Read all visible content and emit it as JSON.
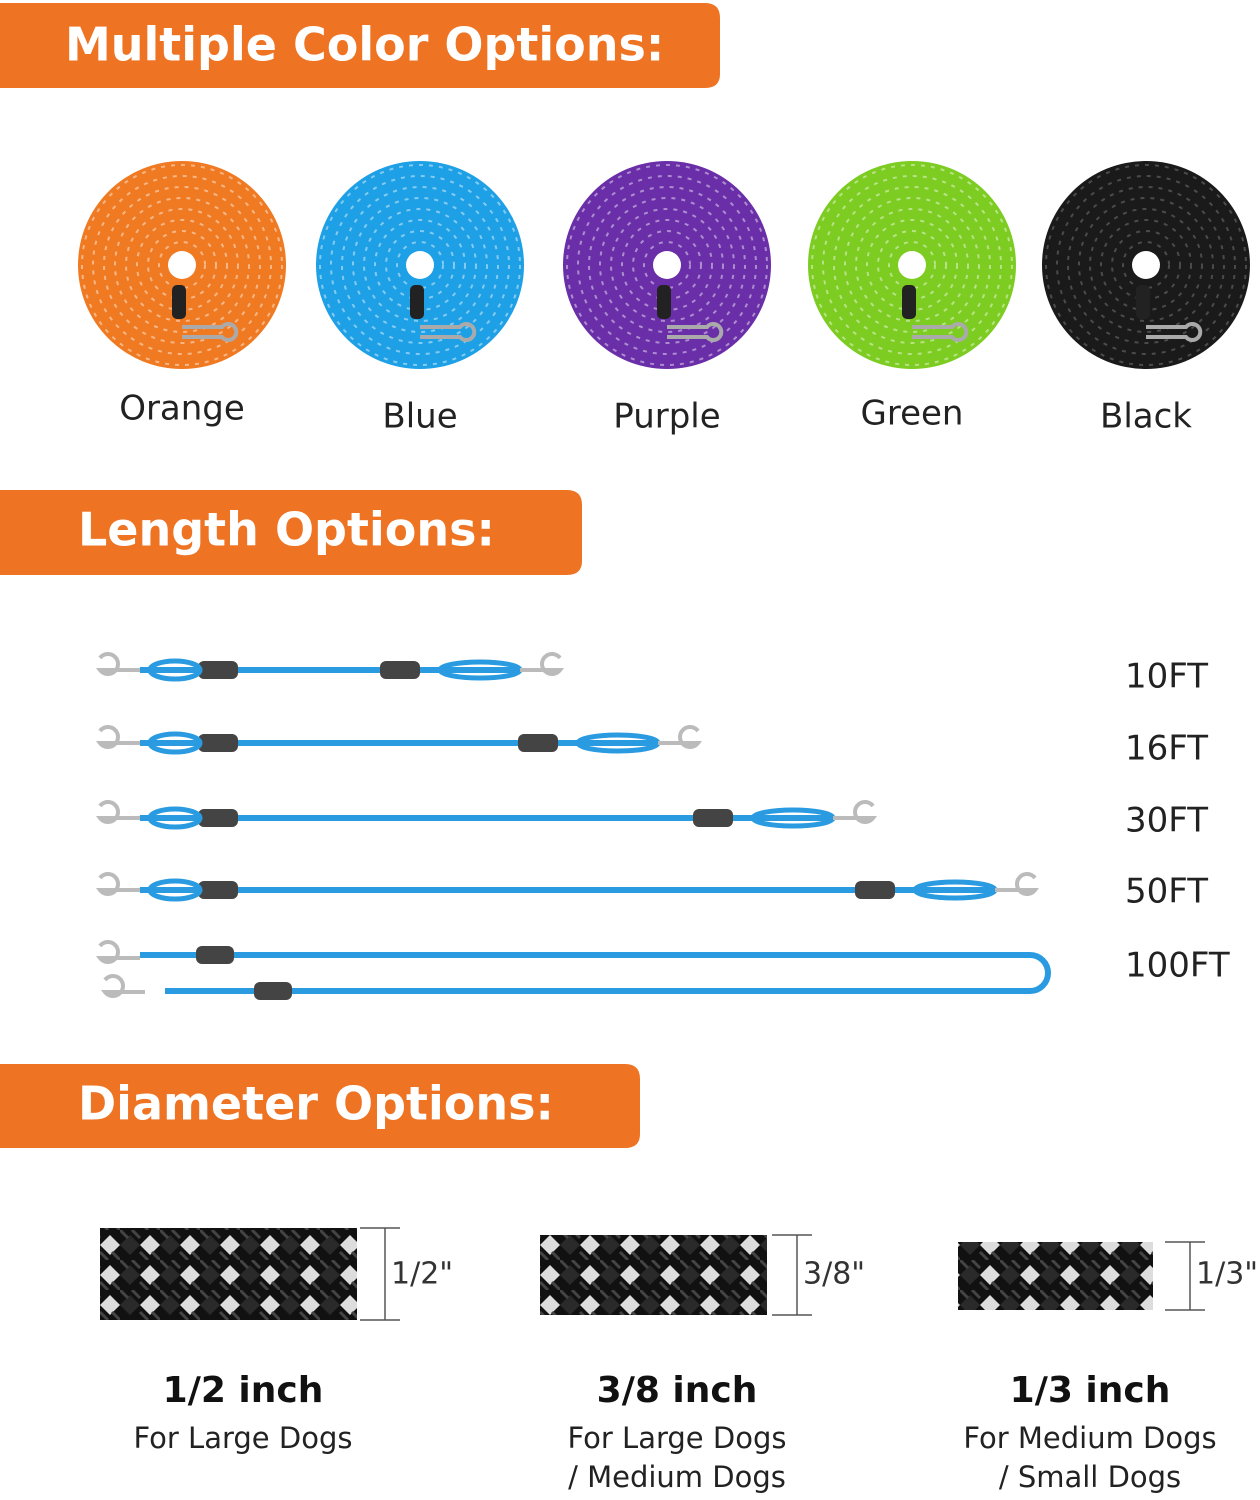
{
  "sections": {
    "colors": {
      "title": "Multiple Color Options:",
      "items": [
        "Orange",
        "Blue",
        "Purple",
        "Green",
        "Black"
      ]
    },
    "lengths": {
      "title": "Length Options:",
      "items": [
        "10FT",
        "16FT",
        "30FT",
        "50FT",
        "100FT"
      ]
    },
    "diameters": {
      "title": "Diameter Options:",
      "items": [
        {
          "size": "1/2\"",
          "name": "1/2 inch",
          "use": [
            "For Large Dogs"
          ]
        },
        {
          "size": "3/8\"",
          "name": "3/8 inch",
          "use": [
            "For Large Dogs",
            "/ Medium Dogs"
          ]
        },
        {
          "size": "1/3\"",
          "name": "1/3 inch",
          "use": [
            "For Medium Dogs",
            "/ Small Dogs"
          ]
        }
      ]
    }
  }
}
